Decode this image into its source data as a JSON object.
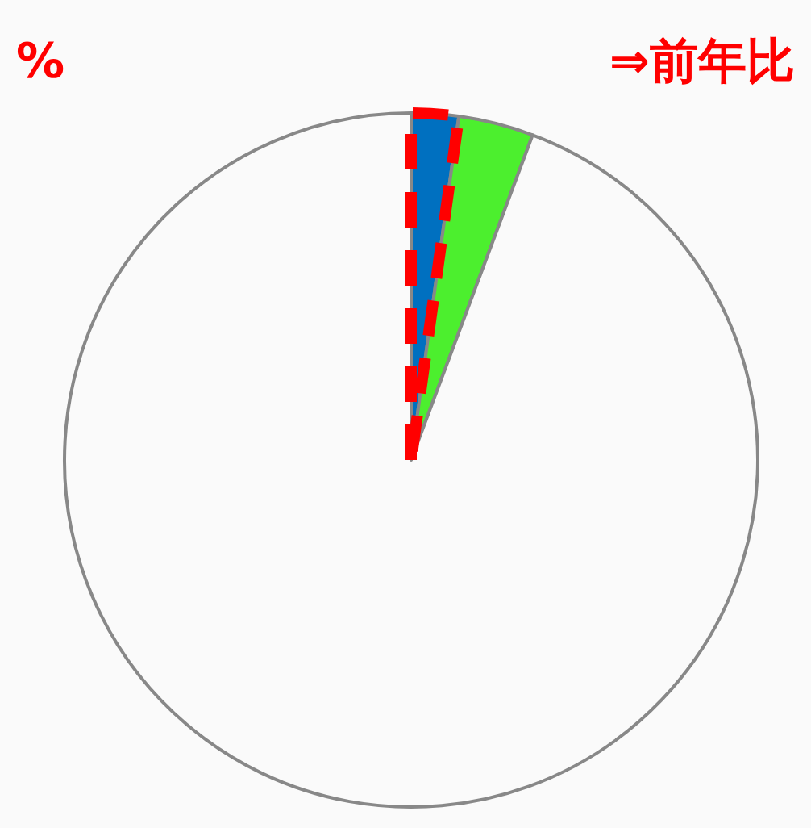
{
  "chart_data": {
    "type": "pie",
    "categories": [
      null,
      null,
      null
    ],
    "values": [
      2.2,
      3.5,
      94.3
    ],
    "colors": [
      "#0070c0",
      "#4cef2e",
      "#fafafa"
    ],
    "annotations": [
      "%",
      "⇒前年比"
    ]
  }
}
